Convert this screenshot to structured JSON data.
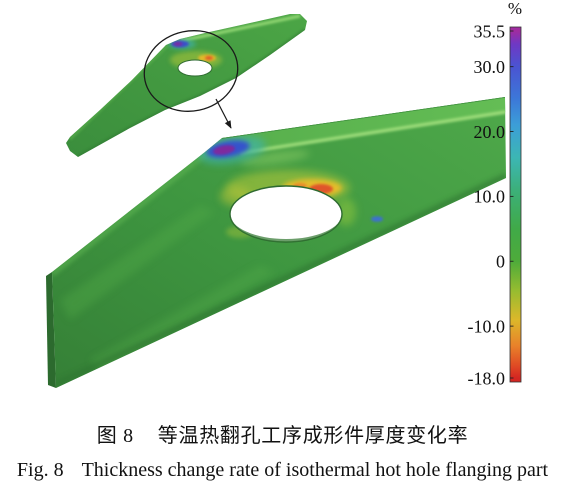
{
  "figure": {
    "colorbar": {
      "unit_label": "%",
      "max": 35.5,
      "min": -18.0,
      "ticks": [
        {
          "value": 35.5,
          "label": "35.5"
        },
        {
          "value": 30.0,
          "label": "30.0"
        },
        {
          "value": 20.0,
          "label": "20.0"
        },
        {
          "value": 10.0,
          "label": "10.0"
        },
        {
          "value": 0,
          "label": "0"
        },
        {
          "value": -10.0,
          "label": "-10.0"
        },
        {
          "value": -18.0,
          "label": "-18.0"
        }
      ],
      "stops": [
        {
          "value": 35.5,
          "color": "#a02ca0"
        },
        {
          "value": 33.5,
          "color": "#6f38c4"
        },
        {
          "value": 30.0,
          "color": "#4a54d2"
        },
        {
          "value": 25.0,
          "color": "#3c78d8"
        },
        {
          "value": 21.0,
          "color": "#3c9ed8"
        },
        {
          "value": 16.0,
          "color": "#3cb6b4"
        },
        {
          "value": 11.0,
          "color": "#3cb07a"
        },
        {
          "value": 5.0,
          "color": "#40aa48"
        },
        {
          "value": 0.0,
          "color": "#4eab3a"
        },
        {
          "value": -4.5,
          "color": "#96bc30"
        },
        {
          "value": -9.0,
          "color": "#dcb82a"
        },
        {
          "value": -13.0,
          "color": "#e8822a"
        },
        {
          "value": -16.0,
          "color": "#e04c24"
        },
        {
          "value": -18.0,
          "color": "#d42622"
        }
      ]
    }
  },
  "caption": {
    "cn_label": "图 8",
    "cn_text": "等温热翻孔工序成形件厚度变化率",
    "en_label": "Fig. 8",
    "en_text": "Thickness change rate of isothermal hot hole flanging part"
  }
}
